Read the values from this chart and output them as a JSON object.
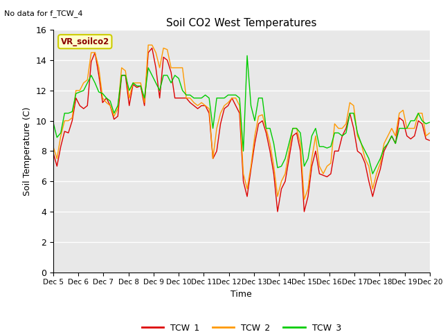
{
  "title": "Soil CO2 West Temperatures",
  "no_data_text": "No data for f_TCW_4",
  "xlabel": "Time",
  "ylabel": "Soil Temperature (C)",
  "ylim": [
    0,
    16
  ],
  "yticks": [
    0,
    2,
    4,
    6,
    8,
    10,
    12,
    14,
    16
  ],
  "bg_color": "#e8e8e8",
  "legend_label": "VR_soilco2",
  "x_tick_labels": [
    "Dec 5",
    "Dec 6",
    "Dec 7",
    "Dec 8",
    "Dec 9",
    "Dec 10",
    "Dec 11",
    "Dec 12",
    "Dec 13",
    "Dec 14",
    "Dec 15",
    "Dec 16",
    "Dec 17",
    "Dec 18",
    "Dec 19",
    "Dec 20"
  ],
  "colors": {
    "TCW_1": "#dd0000",
    "TCW_2": "#ff9900",
    "TCW_3": "#00cc00"
  },
  "TCW_1": [
    7.9,
    7.0,
    8.3,
    9.3,
    9.2,
    10.0,
    11.5,
    11.0,
    10.8,
    11.0,
    13.9,
    14.5,
    13.0,
    11.2,
    11.5,
    11.0,
    10.1,
    10.3,
    13.0,
    13.0,
    11.0,
    12.4,
    12.2,
    12.3,
    11.0,
    14.5,
    14.8,
    13.5,
    11.5,
    14.2,
    14.0,
    13.2,
    11.5,
    11.5,
    11.5,
    11.5,
    11.2,
    11.0,
    10.8,
    11.0,
    11.0,
    10.5,
    7.5,
    8.0,
    9.8,
    10.8,
    11.0,
    11.5,
    11.0,
    10.5,
    6.0,
    5.0,
    6.8,
    8.5,
    9.8,
    10.0,
    9.2,
    8.0,
    6.5,
    4.0,
    5.5,
    6.0,
    7.5,
    9.0,
    9.2,
    8.0,
    4.0,
    5.0,
    7.0,
    8.0,
    6.5,
    6.4,
    6.3,
    6.5,
    8.0,
    8.0,
    9.0,
    9.5,
    10.5,
    9.5,
    8.0,
    7.8,
    7.2,
    6.0,
    5.0,
    6.0,
    6.8,
    8.0,
    8.5,
    9.0,
    8.5,
    10.2,
    10.0,
    9.0,
    8.8,
    9.0,
    10.0,
    9.8,
    8.8,
    8.7
  ],
  "TCW_2": [
    8.3,
    7.5,
    9.0,
    10.0,
    10.0,
    10.2,
    12.0,
    12.0,
    12.5,
    12.7,
    14.5,
    14.5,
    13.5,
    11.5,
    11.2,
    11.0,
    10.3,
    10.8,
    13.5,
    13.3,
    11.5,
    12.5,
    12.5,
    12.5,
    11.2,
    15.0,
    15.0,
    14.5,
    13.5,
    14.8,
    14.7,
    13.5,
    13.5,
    13.5,
    13.5,
    11.5,
    11.5,
    11.2,
    11.0,
    11.2,
    11.0,
    10.8,
    7.5,
    9.5,
    10.5,
    11.0,
    11.2,
    11.5,
    11.5,
    11.0,
    6.5,
    5.5,
    7.0,
    9.0,
    10.3,
    10.4,
    9.5,
    8.5,
    7.0,
    5.0,
    6.0,
    6.5,
    8.0,
    9.5,
    9.5,
    8.5,
    4.8,
    5.5,
    7.5,
    9.0,
    7.0,
    6.5,
    7.0,
    7.2,
    9.8,
    9.5,
    9.5,
    9.8,
    11.2,
    11.0,
    9.0,
    8.5,
    7.5,
    7.0,
    5.5,
    6.5,
    7.2,
    8.5,
    9.0,
    9.5,
    9.0,
    10.5,
    10.7,
    9.5,
    9.5,
    9.5,
    10.5,
    10.5,
    9.0,
    9.2
  ],
  "TCW_3": [
    9.9,
    8.9,
    9.2,
    10.5,
    10.5,
    10.6,
    11.8,
    11.9,
    12.0,
    12.5,
    13.0,
    12.5,
    11.9,
    11.8,
    11.5,
    11.3,
    10.5,
    11.0,
    13.0,
    13.0,
    12.0,
    12.5,
    12.3,
    12.3,
    11.5,
    13.5,
    13.0,
    12.5,
    12.0,
    13.0,
    13.0,
    12.5,
    13.0,
    12.8,
    12.0,
    11.7,
    11.7,
    11.5,
    11.5,
    11.5,
    11.7,
    11.5,
    9.5,
    11.5,
    11.5,
    11.5,
    11.7,
    11.7,
    11.7,
    11.5,
    8.0,
    14.3,
    11.0,
    10.0,
    11.5,
    11.5,
    9.5,
    9.5,
    8.5,
    6.9,
    7.0,
    7.5,
    8.5,
    9.5,
    9.5,
    9.2,
    7.0,
    7.5,
    9.0,
    9.5,
    8.3,
    8.3,
    8.2,
    8.3,
    9.2,
    9.2,
    9.0,
    9.2,
    10.5,
    10.5,
    9.2,
    8.5,
    8.0,
    7.5,
    6.5,
    7.0,
    7.5,
    8.2,
    8.5,
    9.0,
    8.5,
    9.5,
    9.5,
    9.5,
    10.0,
    10.0,
    10.5,
    10.0,
    9.8,
    9.9
  ]
}
